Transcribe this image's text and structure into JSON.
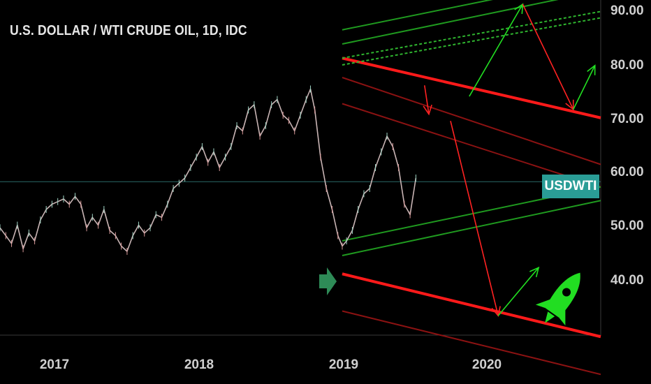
{
  "chart_data": {
    "type": "line",
    "title": "U.S. DOLLAR / WTI CRUDE OIL, 1D, IDC",
    "symbol_badge": "USDWTI",
    "y_ticks": [
      "90.00",
      "80.00",
      "70.00",
      "60.00",
      "50.00",
      "40.00"
    ],
    "x_ticks": [
      "2017",
      "2018",
      "2019",
      "2020"
    ],
    "ylim": [
      28,
      92
    ],
    "xlim": [
      2016.62,
      2020.78
    ],
    "current_price": 57.3,
    "colors": {
      "price": "#c8b4b4",
      "red_channel": "#ff1a1a",
      "dark_red_channel": "#8b1212",
      "green_channel": "#1f9a1f",
      "green_dotted": "#2fb52f",
      "arrow_green": "#22e022",
      "arrow_red": "#ff2222",
      "rocket": "#22dd22",
      "marker_arrow": "#2e8b57",
      "badge": "#2a9d96"
    },
    "price_series": {
      "x": [
        2016.62,
        2016.66,
        2016.7,
        2016.74,
        2016.78,
        2016.82,
        2016.86,
        2016.9,
        2016.94,
        2016.98,
        2017.02,
        2017.06,
        2017.1,
        2017.14,
        2017.18,
        2017.22,
        2017.26,
        2017.3,
        2017.34,
        2017.38,
        2017.42,
        2017.46,
        2017.5,
        2017.54,
        2017.58,
        2017.62,
        2017.66,
        2017.7,
        2017.74,
        2017.78,
        2017.82,
        2017.86,
        2017.9,
        2017.94,
        2017.98,
        2018.02,
        2018.06,
        2018.1,
        2018.14,
        2018.18,
        2018.22,
        2018.26,
        2018.3,
        2018.34,
        2018.38,
        2018.42,
        2018.46,
        2018.5,
        2018.54,
        2018.58,
        2018.62,
        2018.66,
        2018.7,
        2018.74,
        2018.77,
        2018.8,
        2018.84,
        2018.88,
        2018.92,
        2018.96,
        2018.99,
        2019.02,
        2019.06,
        2019.1,
        2019.14,
        2019.18,
        2019.22,
        2019.26,
        2019.3,
        2019.34,
        2019.38,
        2019.42,
        2019.46,
        2019.5
      ],
      "y": [
        48.5,
        47,
        45.5,
        49,
        44.5,
        47.5,
        46,
        50,
        52,
        53,
        53.5,
        54,
        53,
        54.5,
        53,
        48.5,
        50.5,
        49,
        52,
        48,
        47,
        45,
        44,
        47,
        49,
        47.5,
        48.5,
        51,
        50.5,
        53,
        56,
        57,
        58,
        60,
        62,
        64,
        61,
        63,
        60,
        62,
        64,
        68,
        67,
        71,
        72,
        66,
        68,
        72,
        73,
        70,
        69,
        67,
        70,
        73,
        75,
        71,
        62,
        56,
        52,
        47,
        45,
        46,
        48,
        52,
        55,
        56,
        60,
        63,
        66,
        64,
        60,
        53,
        51,
        58
      ]
    },
    "channels": {
      "red_upper": {
        "x": [
          2018.99,
          2020.78
        ],
        "y": [
          80.9,
          69.5
        ]
      },
      "red_lower": {
        "x": [
          2018.99,
          2020.78
        ],
        "y": [
          39.7,
          27.7
        ]
      },
      "dark_red_1": {
        "x": [
          2018.99,
          2020.78
        ],
        "y": [
          77.2,
          60.6
        ]
      },
      "dark_red_2": {
        "x": [
          2018.99,
          2020.78
        ],
        "y": [
          72.2,
          56.3
        ]
      },
      "dark_red_3": {
        "x": [
          2018.99,
          2020.78
        ],
        "y": [
          32.6,
          20.5
        ]
      },
      "green_lower_1": {
        "x": [
          2018.99,
          2020.78
        ],
        "y": [
          46.0,
          56.3
        ]
      },
      "green_lower_2": {
        "x": [
          2018.99,
          2020.78
        ],
        "y": [
          43.2,
          53.7
        ]
      },
      "green_upper_1": {
        "x": [
          2018.99,
          2020.78
        ],
        "y": [
          86.3,
          96.3
        ]
      },
      "green_upper_2": {
        "x": [
          2018.99,
          2020.78
        ],
        "y": [
          83.6,
          93.8
        ]
      },
      "green_dotted_1": {
        "x": [
          2018.99,
          2020.78
        ],
        "y": [
          80.9,
          89.8
        ]
      },
      "green_dotted_2": {
        "x": [
          2018.99,
          2020.78
        ],
        "y": [
          79.6,
          88.6
        ]
      }
    },
    "projection_arrows": [
      {
        "color": "green",
        "x": [
          2019.87,
          2020.24
        ],
        "y": [
          73.6,
          91.2
        ]
      },
      {
        "color": "red",
        "x": [
          2020.24,
          2020.59
        ],
        "y": [
          91.2,
          71.1
        ]
      },
      {
        "color": "green",
        "x": [
          2020.59,
          2020.74
        ],
        "y": [
          71.1,
          79.5
        ]
      },
      {
        "color": "red",
        "x": [
          2019.56,
          2019.59
        ],
        "y": [
          75.7,
          70.2
        ]
      },
      {
        "color": "red",
        "x": [
          2019.74,
          2020.07
        ],
        "y": [
          68.9,
          31.7
        ]
      },
      {
        "color": "green",
        "x": [
          2020.07,
          2020.35
        ],
        "y": [
          31.7,
          40.9
        ]
      }
    ]
  }
}
